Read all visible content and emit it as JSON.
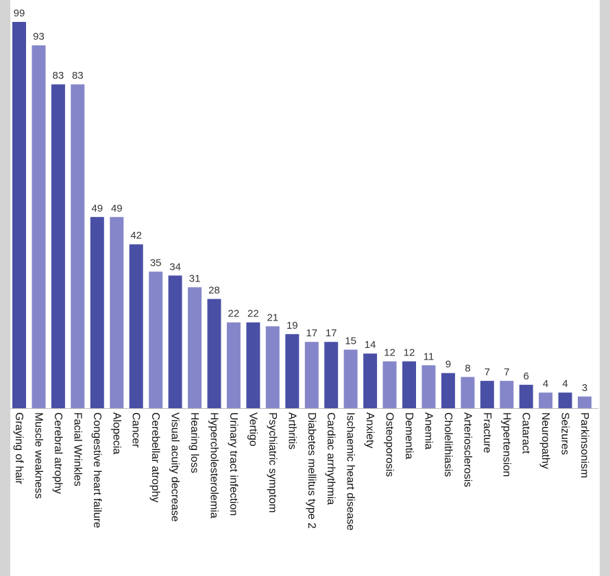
{
  "chart_data": {
    "type": "bar",
    "title": "",
    "xlabel": "",
    "ylabel": "",
    "ylim": [
      0,
      100
    ],
    "grid": false,
    "categories": [
      "Graying of hair",
      "Muscle weakness",
      "Cerebral atrophy",
      "Facial Wrinkles",
      "Congestive heart failure",
      "Alopecia",
      "Cancer",
      "Cerebellar atrophy",
      "Visual acuity decrease",
      "Hearing loss",
      "Hypercholesterolemia",
      "Urinary tract infection",
      "Vertigo",
      "Psychiatric symptom",
      "Arthritis",
      "Diabetes mellitus type 2",
      "Cardiac arrhythmia",
      "Ischaemic heart disease",
      "Anxiety",
      "Osteoporosis",
      "Dementia",
      "Anemia",
      "Cholelithiasis",
      "Arteriosclerosis",
      "Fracture",
      "Hypertension",
      "Cataract",
      "Neuropathy",
      "Seizures",
      "Parkinsonism"
    ],
    "values": [
      99,
      93,
      83,
      83,
      49,
      49,
      42,
      35,
      34,
      31,
      28,
      22,
      22,
      21,
      19,
      17,
      17,
      15,
      14,
      12,
      12,
      11,
      9,
      8,
      7,
      7,
      6,
      4,
      4,
      3
    ],
    "bar_colors": [
      "#4a4fa6",
      "#8586c9",
      "#4a4fa6",
      "#8586c9",
      "#4a4fa6",
      "#8586c9",
      "#4a4fa6",
      "#8586c9",
      "#4a4fa6",
      "#8586c9",
      "#4a4fa6",
      "#8586c9",
      "#4a4fa6",
      "#8586c9",
      "#4a4fa6",
      "#8586c9",
      "#4a4fa6",
      "#8586c9",
      "#4a4fa6",
      "#8586c9",
      "#4a4fa6",
      "#8586c9",
      "#4a4fa6",
      "#8586c9",
      "#4a4fa6",
      "#8586c9",
      "#4a4fa6",
      "#8586c9",
      "#4a4fa6",
      "#8586c9"
    ]
  }
}
